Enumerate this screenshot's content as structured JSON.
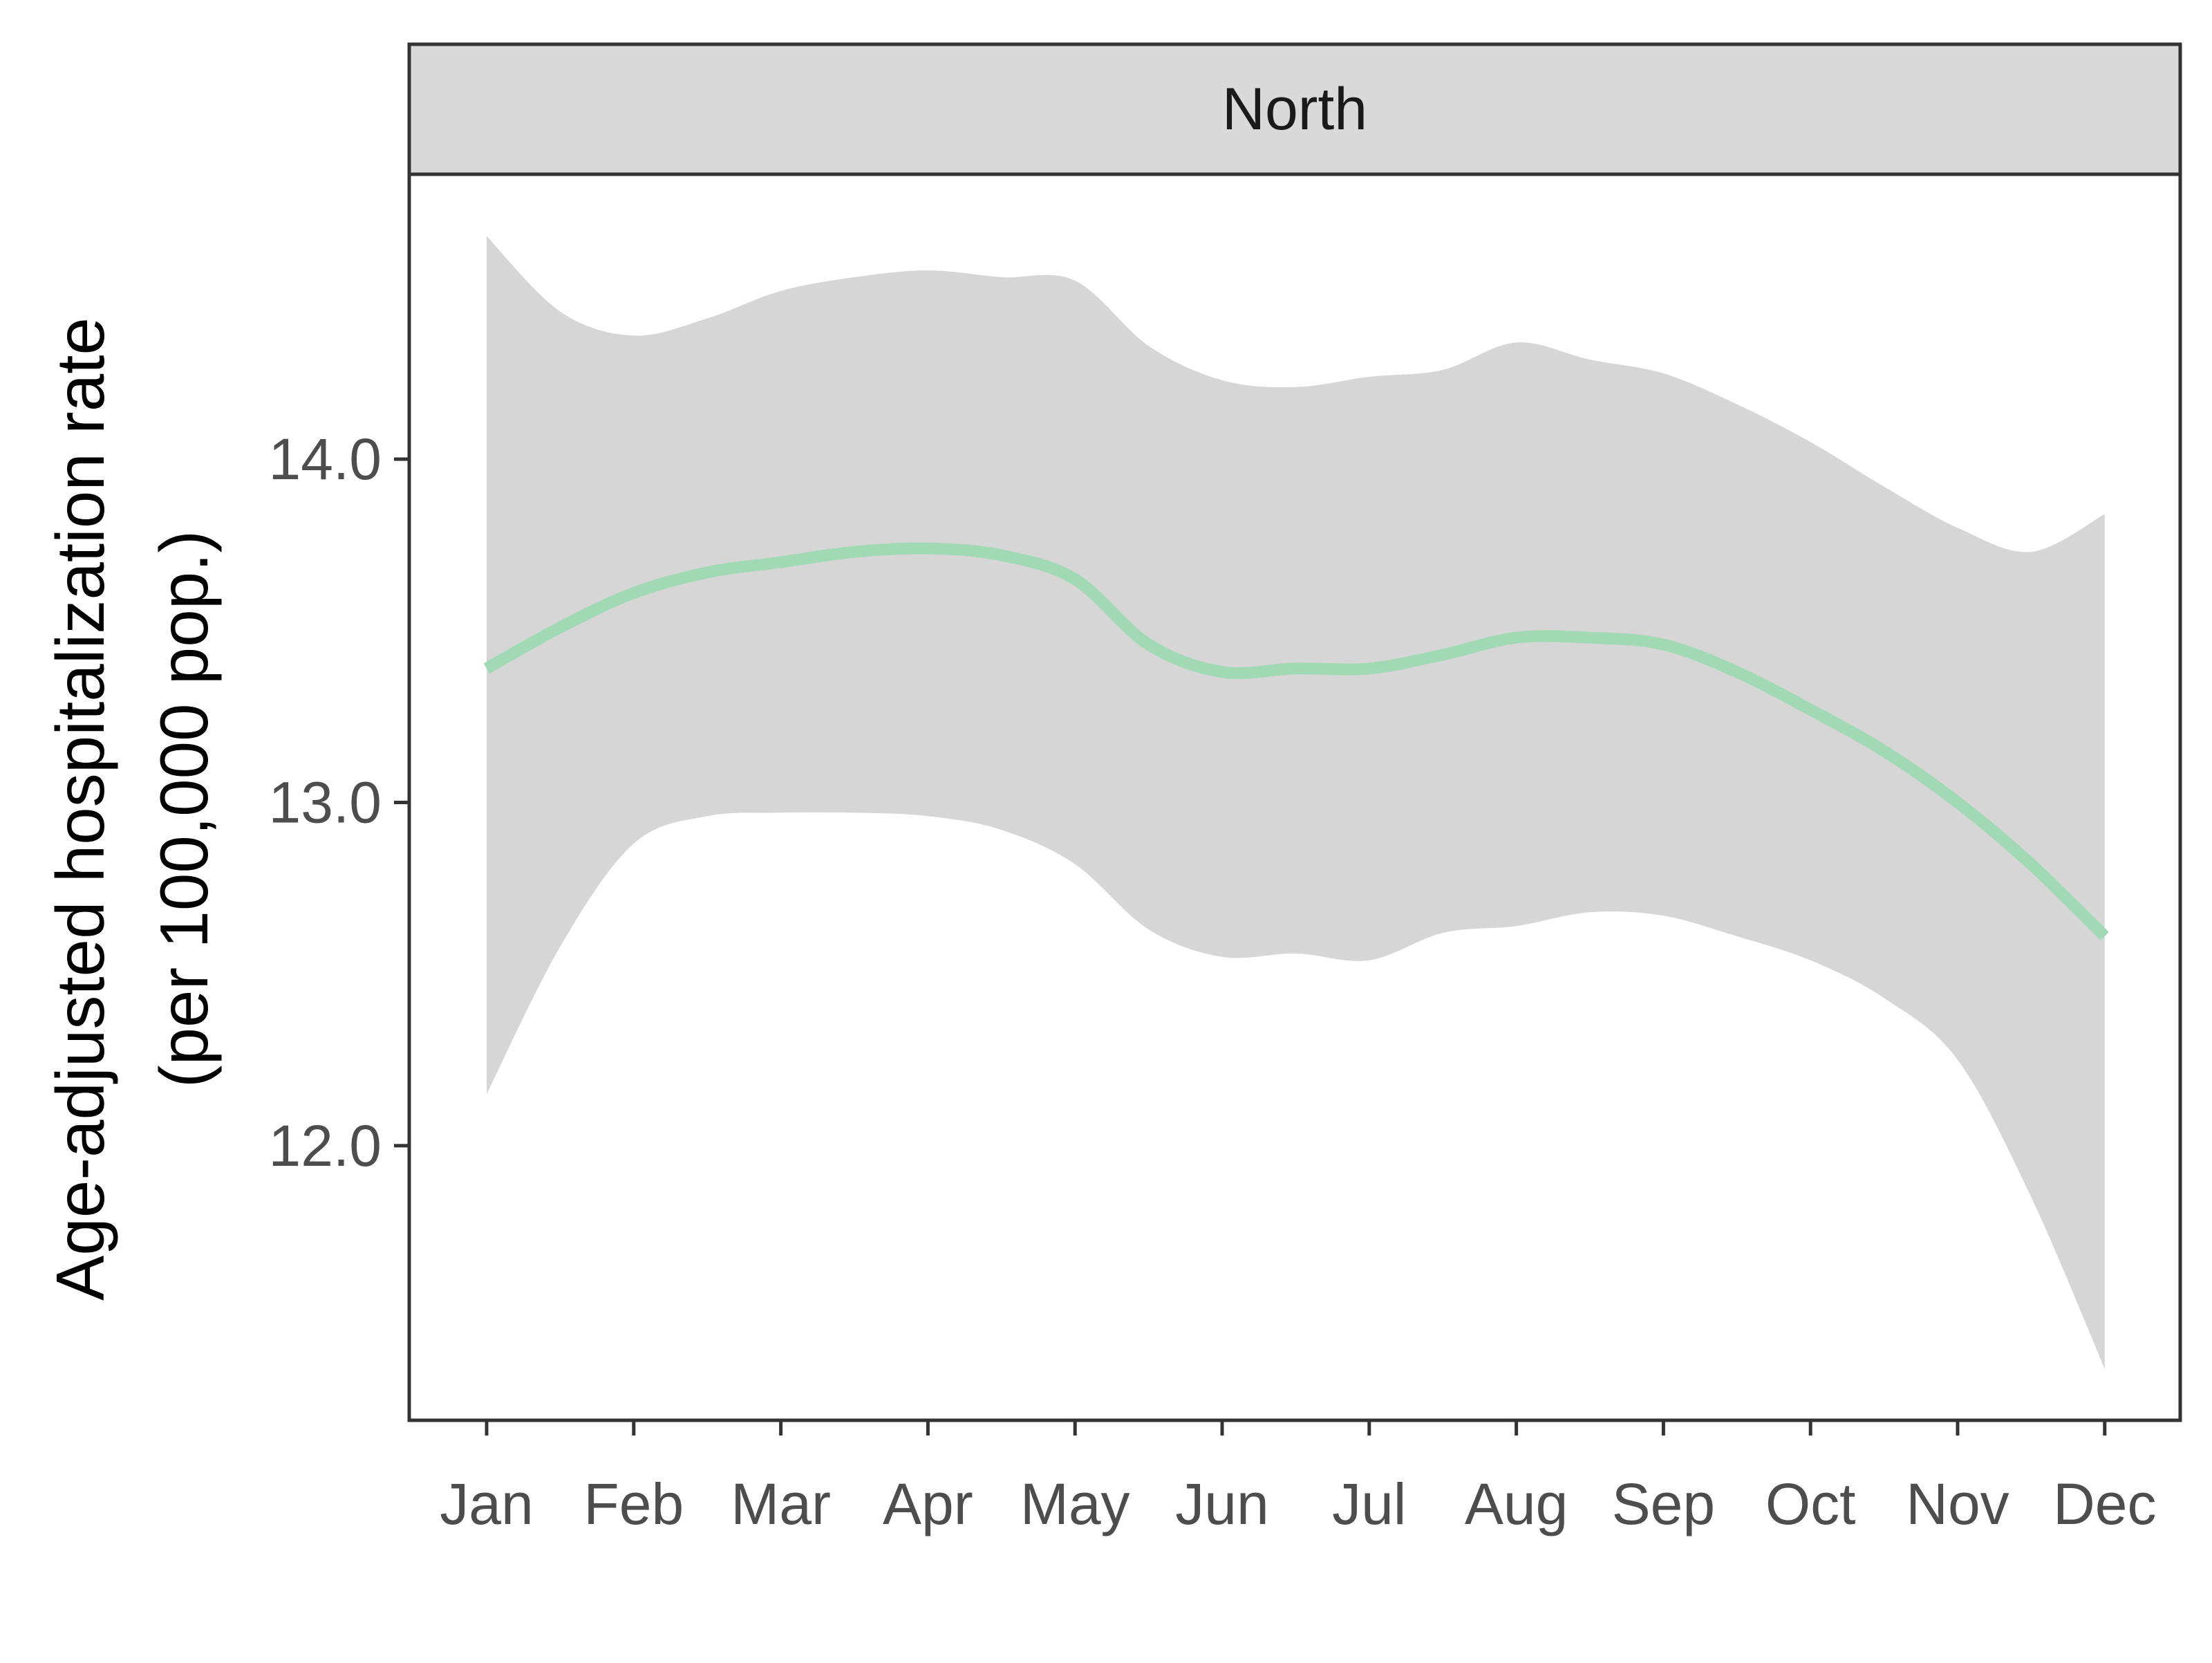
{
  "chart_data": {
    "type": "line",
    "facet": "North",
    "xlabel": "",
    "ylabel_lines": [
      "Age-adjusted hospitalization rate",
      "(per 100,000 pop.)"
    ],
    "categories": [
      "Jan",
      "Feb",
      "Mar",
      "Apr",
      "May",
      "Jun",
      "Jul",
      "Aug",
      "Sep",
      "Oct",
      "Nov",
      "Dec"
    ],
    "x": [
      1,
      1.5,
      2,
      2.5,
      3,
      3.5,
      4,
      4.5,
      5,
      5.5,
      6,
      6.5,
      7,
      7.5,
      8,
      8.5,
      9,
      9.5,
      10,
      10.5,
      11,
      11.5,
      12
    ],
    "fit": [
      13.39,
      13.51,
      13.61,
      13.67,
      13.7,
      13.73,
      13.74,
      13.72,
      13.65,
      13.46,
      13.38,
      13.39,
      13.39,
      13.43,
      13.48,
      13.48,
      13.46,
      13.38,
      13.27,
      13.15,
      13.0,
      12.82,
      12.61
    ],
    "ci_lower": [
      12.15,
      12.58,
      12.88,
      12.96,
      12.97,
      12.97,
      12.96,
      12.92,
      12.82,
      12.63,
      12.55,
      12.56,
      12.54,
      12.62,
      12.64,
      12.68,
      12.67,
      12.61,
      12.54,
      12.43,
      12.25,
      11.85,
      11.35
    ],
    "ci_upper": [
      14.65,
      14.43,
      14.36,
      14.41,
      14.49,
      14.53,
      14.55,
      14.53,
      14.52,
      14.33,
      14.23,
      14.21,
      14.24,
      14.26,
      14.34,
      14.29,
      14.25,
      14.16,
      14.05,
      13.92,
      13.8,
      13.73,
      13.84
    ],
    "ylim": [
      11.2,
      14.83
    ],
    "yticks": [
      12.0,
      13.0,
      14.0
    ],
    "ytick_labels": [
      "12.0",
      "13.0",
      "14.0"
    ],
    "grid": false,
    "legend": "none",
    "colors": {
      "fit_line": "#a1d9b4",
      "ci_band": "#d6d6d6",
      "strip_background": "#d9d9d9",
      "panel_border": "#333333"
    }
  }
}
